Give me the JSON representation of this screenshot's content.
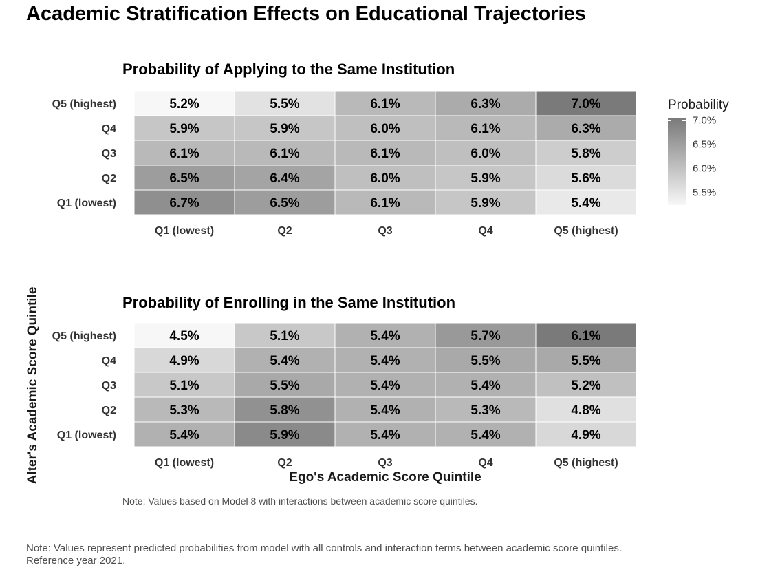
{
  "title": "Academic Stratification Effects on Educational Trajectories",
  "y_axis_label": "Alter's Academic Score Quintile",
  "x_axis_label": "Ego's Academic Score Quintile",
  "panel_note": "Note: Values based on Model 8 with interactions between academic score quintiles.",
  "footnote": {
    "line1": "Note: Values represent predicted probabilities from model with all controls and interaction terms between academic score quintiles.",
    "line2": "Reference year 2021."
  },
  "legend": {
    "title": "Probability",
    "ticks": [
      "7.0%",
      "6.5%",
      "6.0%",
      "5.5%"
    ],
    "tick_values": [
      7.0,
      6.5,
      6.0,
      5.5
    ],
    "range": [
      5.2,
      7.0
    ]
  },
  "colors": {
    "low": "#f7f7f7",
    "high": "#7a7a7a",
    "gridline": "#ffffff"
  },
  "chart_data": [
    {
      "type": "heatmap",
      "title": "Probability of Applying to the Same Institution",
      "x_categories": [
        "Q1 (lowest)",
        "Q2",
        "Q3",
        "Q4",
        "Q5 (highest)"
      ],
      "y_categories": [
        "Q5 (highest)",
        "Q4",
        "Q3",
        "Q2",
        "Q1 (lowest)"
      ],
      "values": [
        [
          5.2,
          5.5,
          6.1,
          6.3,
          7.0
        ],
        [
          5.9,
          5.9,
          6.0,
          6.1,
          6.3
        ],
        [
          6.1,
          6.1,
          6.1,
          6.0,
          5.8
        ],
        [
          6.5,
          6.4,
          6.0,
          5.9,
          5.6
        ],
        [
          6.7,
          6.5,
          6.1,
          5.9,
          5.4
        ]
      ],
      "labels": [
        [
          "5.2%",
          "5.5%",
          "6.1%",
          "6.3%",
          "7.0%"
        ],
        [
          "5.9%",
          "5.9%",
          "6.0%",
          "6.1%",
          "6.3%"
        ],
        [
          "6.1%",
          "6.1%",
          "6.1%",
          "6.0%",
          "5.8%"
        ],
        [
          "6.5%",
          "6.4%",
          "6.0%",
          "5.9%",
          "5.6%"
        ],
        [
          "6.7%",
          "6.5%",
          "6.1%",
          "5.9%",
          "5.4%"
        ]
      ],
      "color_range": [
        5.2,
        7.0
      ]
    },
    {
      "type": "heatmap",
      "title": "Probability of Enrolling in the Same Institution",
      "x_categories": [
        "Q1 (lowest)",
        "Q2",
        "Q3",
        "Q4",
        "Q5 (highest)"
      ],
      "y_categories": [
        "Q5 (highest)",
        "Q4",
        "Q3",
        "Q2",
        "Q1 (lowest)"
      ],
      "values": [
        [
          4.5,
          5.1,
          5.4,
          5.7,
          6.1
        ],
        [
          4.9,
          5.4,
          5.4,
          5.5,
          5.5
        ],
        [
          5.1,
          5.5,
          5.4,
          5.4,
          5.2
        ],
        [
          5.3,
          5.8,
          5.4,
          5.3,
          4.8
        ],
        [
          5.4,
          5.9,
          5.4,
          5.4,
          4.9
        ]
      ],
      "labels": [
        [
          "4.5%",
          "5.1%",
          "5.4%",
          "5.7%",
          "6.1%"
        ],
        [
          "4.9%",
          "5.4%",
          "5.4%",
          "5.5%",
          "5.5%"
        ],
        [
          "5.1%",
          "5.5%",
          "5.4%",
          "5.4%",
          "5.2%"
        ],
        [
          "5.3%",
          "5.8%",
          "5.4%",
          "5.3%",
          "4.8%"
        ],
        [
          "5.4%",
          "5.9%",
          "5.4%",
          "5.4%",
          "4.9%"
        ]
      ],
      "color_range": [
        4.5,
        6.1
      ]
    }
  ]
}
